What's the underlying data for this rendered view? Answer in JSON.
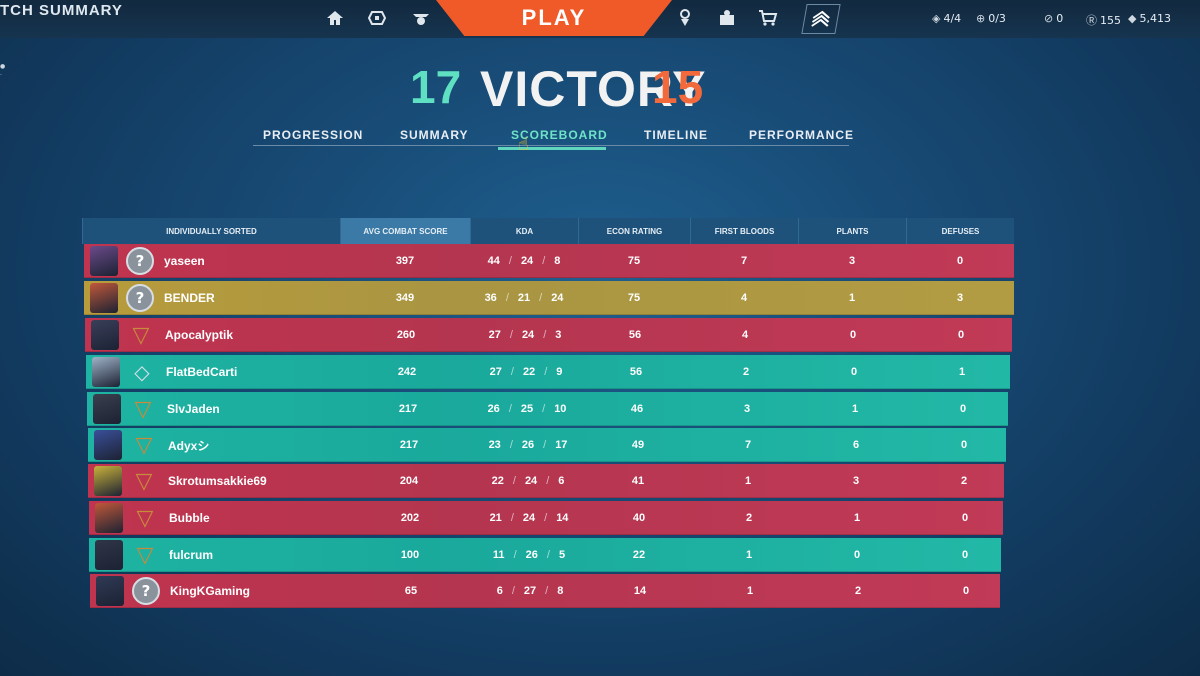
{
  "page_title": "TCH SUMMARY",
  "nav": {
    "play_label": "PLAY",
    "icons": [
      "home-icon",
      "career-icon",
      "agents-icon",
      "collection-icon",
      "battlepass-icon",
      "store-icon",
      "rank-icon"
    ]
  },
  "currency": {
    "loadout": "4/4",
    "upgrades": "0/3",
    "kingdom": "0",
    "radianite": "155",
    "valorant_points": "5,413"
  },
  "match": {
    "team_score": "17",
    "result": "VICTORY",
    "enemy_score": "15"
  },
  "tabs": [
    {
      "label": "PROGRESSION",
      "active": false
    },
    {
      "label": "SUMMARY",
      "active": false
    },
    {
      "label": "SCOREBOARD",
      "active": true
    },
    {
      "label": "TIMELINE",
      "active": false
    },
    {
      "label": "PERFORMANCE",
      "active": false
    }
  ],
  "scoreboard": {
    "columns": [
      "INDIVIDUALLY SORTED",
      "AVG COMBAT SCORE",
      "KDA",
      "ECON RATING",
      "FIRST BLOODS",
      "PLANTS",
      "DEFUSES"
    ],
    "rows": [
      {
        "name": "yaseen",
        "team": "red",
        "rank": "unranked",
        "acs": "397",
        "k": "44",
        "d": "24",
        "a": "8",
        "econ": "75",
        "fb": "7",
        "plants": "3",
        "defuses": "0",
        "avatar": "#6b4a8a"
      },
      {
        "name": "BENDER",
        "team": "yellow",
        "rank": "unranked",
        "acs": "349",
        "k": "36",
        "d": "21",
        "a": "24",
        "econ": "75",
        "fb": "4",
        "plants": "1",
        "defuses": "3",
        "avatar": "#c0583a"
      },
      {
        "name": "Apocalyptik",
        "team": "red",
        "rank": "bronze",
        "acs": "260",
        "k": "27",
        "d": "24",
        "a": "3",
        "econ": "56",
        "fb": "4",
        "plants": "0",
        "defuses": "0",
        "avatar": "#3a3f5a"
      },
      {
        "name": "FlatBedCarti",
        "team": "teal",
        "rank": "silver",
        "acs": "242",
        "k": "27",
        "d": "22",
        "a": "9",
        "econ": "56",
        "fb": "2",
        "plants": "0",
        "defuses": "1",
        "avatar": "#9fb3c8"
      },
      {
        "name": "SlvJaden",
        "team": "teal",
        "rank": "bronze",
        "acs": "217",
        "k": "26",
        "d": "25",
        "a": "10",
        "econ": "46",
        "fb": "3",
        "plants": "1",
        "defuses": "0",
        "avatar": "#3b3f4e"
      },
      {
        "name": "Adyxシ",
        "team": "teal",
        "rank": "bronze",
        "acs": "217",
        "k": "23",
        "d": "26",
        "a": "17",
        "econ": "49",
        "fb": "7",
        "plants": "6",
        "defuses": "0",
        "avatar": "#3a4f9a"
      },
      {
        "name": "Skrotumsakkie69",
        "team": "red",
        "rank": "bronze",
        "acs": "204",
        "k": "22",
        "d": "24",
        "a": "6",
        "econ": "41",
        "fb": "1",
        "plants": "3",
        "defuses": "2",
        "avatar": "#c9b23a"
      },
      {
        "name": "Bubble",
        "team": "red",
        "rank": "bronze",
        "acs": "202",
        "k": "21",
        "d": "24",
        "a": "14",
        "econ": "40",
        "fb": "2",
        "plants": "1",
        "defuses": "0",
        "avatar": "#c0583a"
      },
      {
        "name": "fulcrum",
        "team": "teal",
        "rank": "bronze",
        "acs": "100",
        "k": "11",
        "d": "26",
        "a": "5",
        "econ": "22",
        "fb": "1",
        "plants": "0",
        "defuses": "0",
        "avatar": "#2f3648"
      },
      {
        "name": "KingKGaming",
        "team": "red",
        "rank": "unranked",
        "acs": "65",
        "k": "6",
        "d": "27",
        "a": "8",
        "econ": "14",
        "fb": "1",
        "plants": "2",
        "defuses": "0",
        "avatar": "#2f3a55"
      }
    ]
  }
}
